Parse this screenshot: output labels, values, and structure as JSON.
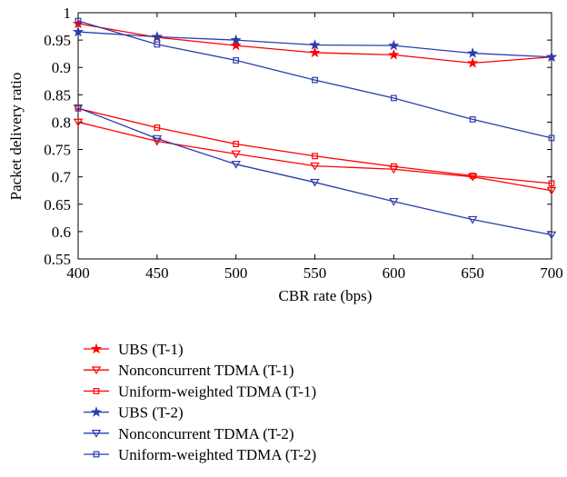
{
  "chart_data": {
    "type": "line",
    "title": "",
    "xlabel": "CBR rate (bps)",
    "ylabel": "Packet delivery ratio",
    "x": [
      400,
      450,
      500,
      550,
      600,
      650,
      700
    ],
    "xlim": [
      400,
      700
    ],
    "ylim": [
      0.55,
      1
    ],
    "xticks": [
      "400",
      "450",
      "500",
      "550",
      "600",
      "650",
      "700"
    ],
    "yticks": [
      "0.55",
      "0.6",
      "0.65",
      "0.7",
      "0.75",
      "0.8",
      "0.85",
      "0.9",
      "0.95",
      "1"
    ],
    "grid": false,
    "legend_position": "below",
    "series": [
      {
        "name": "UBS (T-1)",
        "color": "#ff0000",
        "marker": "star",
        "values": [
          0.98,
          0.955,
          0.94,
          0.927,
          0.923,
          0.908,
          0.919
        ]
      },
      {
        "name": "Nonconcurrent TDMA (T-1)",
        "color": "#ff0000",
        "marker": "triangle-down",
        "values": [
          0.8,
          0.765,
          0.742,
          0.72,
          0.714,
          0.7,
          0.675
        ]
      },
      {
        "name": "Uniform-weighted TDMA (T-1)",
        "color": "#ff0000",
        "marker": "square",
        "values": [
          0.825,
          0.79,
          0.76,
          0.738,
          0.719,
          0.702,
          0.688
        ]
      },
      {
        "name": "UBS (T-2)",
        "color": "#2b3dad",
        "marker": "star",
        "values": [
          0.965,
          0.956,
          0.95,
          0.941,
          0.94,
          0.926,
          0.919
        ]
      },
      {
        "name": "Nonconcurrent TDMA (T-2)",
        "color": "#2b3dad",
        "marker": "triangle-down",
        "values": [
          0.826,
          0.77,
          0.723,
          0.69,
          0.655,
          0.622,
          0.594
        ]
      },
      {
        "name": "Uniform-weighted TDMA (T-2)",
        "color": "#2b3dad",
        "marker": "square",
        "values": [
          0.985,
          0.942,
          0.913,
          0.877,
          0.844,
          0.805,
          0.771
        ]
      }
    ]
  }
}
